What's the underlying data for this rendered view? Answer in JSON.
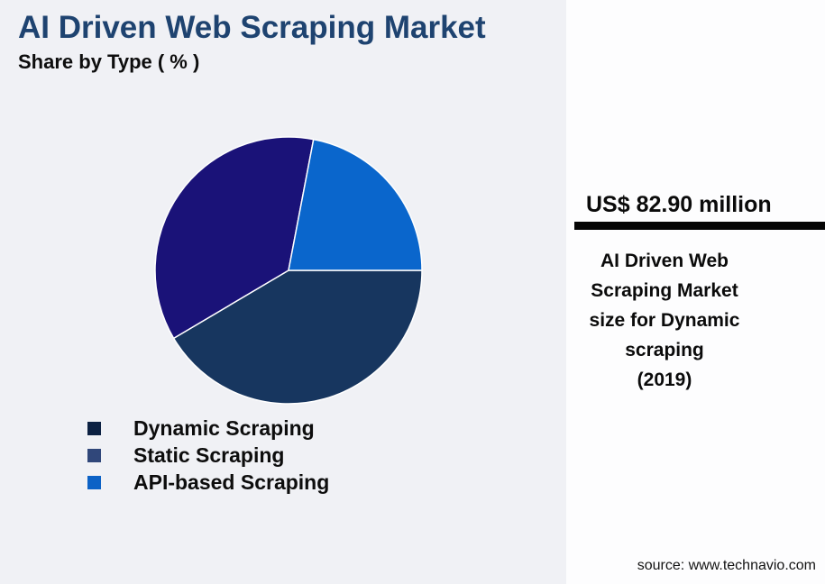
{
  "header": {
    "title": "AI Driven Web Scraping Market",
    "subtitle": "Share by Type ( % )"
  },
  "chart_data": {
    "type": "pie",
    "title": "AI Driven Web Scraping Market - Share by Type (%)",
    "start_angle_deg": 0,
    "direction": "clockwise",
    "legend_position": "bottom-left",
    "slices": [
      {
        "label": "Dynamic Scraping",
        "value": 41.5,
        "color": "#17365f",
        "legend_color": "#0c2142"
      },
      {
        "label": "Static Scraping",
        "value": 36.5,
        "color": "#1a1278",
        "legend_color": "#30477a"
      },
      {
        "label": "API-based Scraping",
        "value": 22.0,
        "color": "#0a66cc",
        "legend_color": "#0c62c6"
      }
    ]
  },
  "side_panel": {
    "headline": "US$ 82.90 million",
    "description": "AI Driven Web Scraping Market size for Dynamic scraping",
    "year": "(2019)",
    "source": "source: www.technavio.com"
  },
  "colors": {
    "page_background": "#f0f1f5",
    "panel_background": "#fdfdfe",
    "title_color": "#1e4370",
    "text_color": "#0b0b0b",
    "divider_color": "#050505",
    "slice_stroke": "#ffffff"
  }
}
